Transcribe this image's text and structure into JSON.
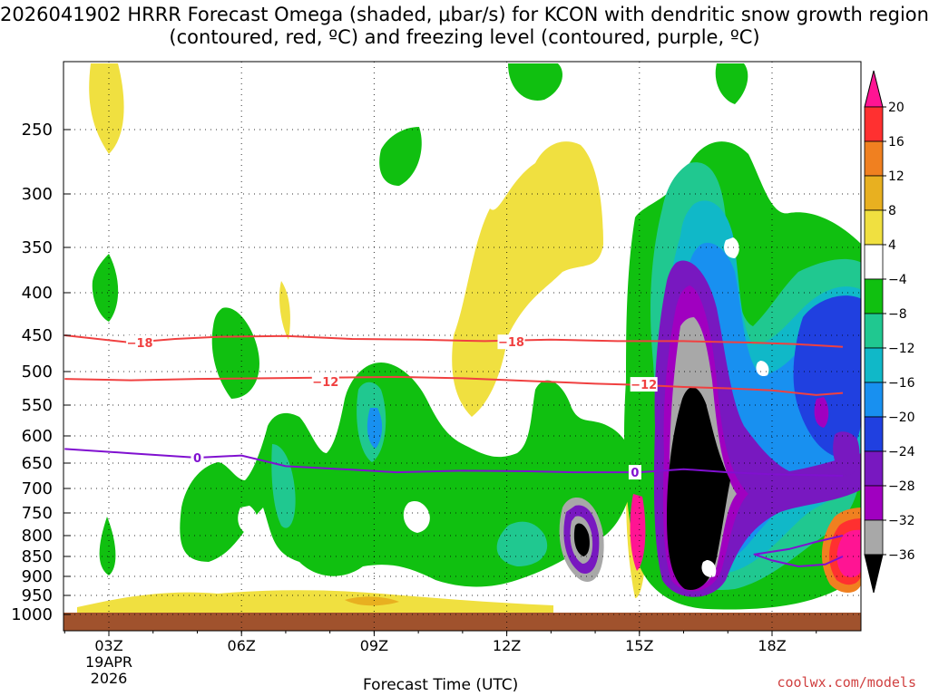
{
  "chart_data": {
    "type": "heatmap",
    "title": "2026041902 HRRR Forecast Omega (shaded, μbar/s) for KCON with dendritic snow growth region (contoured, red, ºC) and freezing level (contoured, purple, ºC)",
    "xlabel": "Forecast Time (UTC)",
    "ylabel": "",
    "x_ticks": [
      "03Z",
      "06Z",
      "09Z",
      "12Z",
      "15Z",
      "18Z"
    ],
    "x_date_line1": "19APR",
    "x_date_line2": "2026",
    "y_ticks": [
      250,
      300,
      350,
      400,
      450,
      500,
      550,
      600,
      650,
      700,
      750,
      800,
      850,
      900,
      950,
      1000
    ],
    "colorbar": {
      "ticks": [
        "20",
        "16",
        "12",
        "8",
        "4",
        "−4",
        "−8",
        "−12",
        "−16",
        "−20",
        "−24",
        "−28",
        "−32",
        "−36"
      ],
      "colors": [
        "#ff1493",
        "#ff3030",
        "#f08020",
        "#e8b020",
        "#f0e040",
        "#ffffff",
        "#10c010",
        "#20c890",
        "#10b8c8",
        "#1890f0",
        "#2040e0",
        "#7818c0",
        "#a000c0",
        "#a8a8a8",
        "#000000"
      ]
    },
    "contours": [
      {
        "name": "dendritic -18",
        "label": "−18",
        "color": "#f04040",
        "points": [
          [
            2.0,
            450
          ],
          [
            3.5,
            460
          ],
          [
            4.5,
            455
          ],
          [
            5.5,
            452
          ],
          [
            7.0,
            451
          ],
          [
            8.5,
            455
          ],
          [
            10.0,
            456
          ],
          [
            11.5,
            458
          ],
          [
            13.0,
            456
          ],
          [
            14.5,
            458
          ],
          [
            16.0,
            458
          ],
          [
            17.5,
            460
          ],
          [
            18.5,
            462
          ],
          [
            19.6,
            466
          ]
        ],
        "label_positions": [
          [
            3.7,
            460
          ],
          [
            12.1,
            459
          ]
        ]
      },
      {
        "name": "dendritic -12",
        "label": "−12",
        "color": "#f04040",
        "points": [
          [
            2.0,
            511
          ],
          [
            3.5,
            513
          ],
          [
            5.0,
            511
          ],
          [
            6.5,
            510
          ],
          [
            8.0,
            509
          ],
          [
            9.5,
            508
          ],
          [
            11.0,
            510
          ],
          [
            12.5,
            514
          ],
          [
            14.0,
            518
          ],
          [
            15.0,
            520
          ],
          [
            16.0,
            523
          ],
          [
            17.0,
            525
          ],
          [
            18.0,
            528
          ],
          [
            19.0,
            535
          ],
          [
            19.6,
            532
          ]
        ],
        "label_positions": [
          [
            7.9,
            515
          ],
          [
            15.1,
            519
          ]
        ]
      },
      {
        "name": "freezing level 0",
        "label": "0",
        "color": "#8010d0",
        "points": [
          [
            2.0,
            624
          ],
          [
            3.5,
            632
          ],
          [
            5.0,
            640
          ],
          [
            6.0,
            636
          ],
          [
            7.0,
            656
          ],
          [
            8.5,
            663
          ],
          [
            9.5,
            668
          ],
          [
            11.0,
            665
          ],
          [
            12.5,
            666
          ],
          [
            13.5,
            668
          ],
          [
            15.0,
            668
          ],
          [
            16.0,
            662
          ],
          [
            17.0,
            668
          ],
          [
            18.0,
            672
          ],
          [
            19.6,
            675
          ]
        ],
        "label_positions": [
          [
            5.0,
            640
          ],
          [
            14.9,
            668
          ]
        ]
      },
      {
        "name": "freezing level 0 lower",
        "label": "",
        "color": "#8010d0",
        "points": [
          [
            19.6,
            800
          ],
          [
            19.0,
            815
          ],
          [
            18.4,
            832
          ],
          [
            17.6,
            845
          ],
          [
            18.0,
            860
          ],
          [
            18.6,
            875
          ],
          [
            19.2,
            870
          ],
          [
            19.6,
            850
          ]
        ],
        "label_positions": []
      }
    ]
  },
  "footer": {
    "attribution": "coolwx.com/models"
  }
}
